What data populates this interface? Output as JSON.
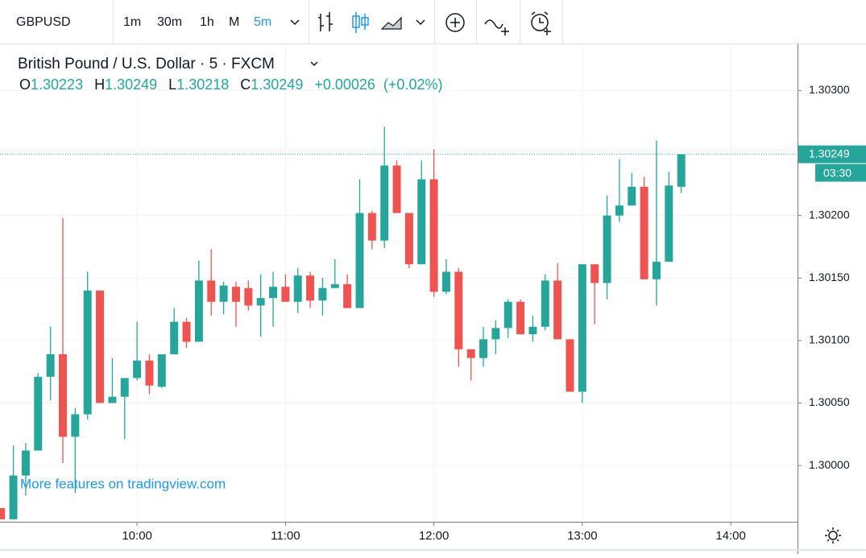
{
  "toolbar": {
    "symbol": "GBPUSD",
    "intervals": [
      "1m",
      "30m",
      "1h",
      "M",
      "5m"
    ],
    "active_interval": 4
  },
  "chart_data": {
    "type": "candlestick",
    "title": "British Pound / U.S. Dollar · 5 · FXCM",
    "ohlc_labels": [
      "O",
      "H",
      "L",
      "C"
    ],
    "change": "+0.00026",
    "change_pct": "(+0.02%)",
    "watermark": "More features on tradingview.com",
    "up_color": "#26a69a",
    "down_color": "#ef5350",
    "last_price": {
      "value": 1.30249,
      "label": "1.30249"
    },
    "countdown": "03:30",
    "x": [
      545,
      550,
      555,
      560,
      565,
      570,
      575,
      580,
      585,
      590,
      595,
      600,
      605,
      610,
      615,
      620,
      625,
      630,
      635,
      640,
      645,
      650,
      655,
      660,
      665,
      670,
      675,
      680,
      685,
      690,
      695,
      700,
      705,
      710,
      715,
      720,
      725,
      730,
      735,
      740,
      745,
      750,
      755,
      760,
      765,
      770,
      775,
      780,
      785,
      790,
      795,
      800,
      805,
      810,
      815,
      820
    ],
    "open": [
      1.29966,
      1.29957,
      1.29992,
      1.30012,
      1.30071,
      1.30089,
      1.30023,
      1.30041,
      1.3014,
      1.3005,
      1.30055,
      1.3007,
      1.30084,
      1.30063,
      1.30089,
      1.30115,
      1.30099,
      1.30148,
      1.30131,
      1.30143,
      1.30142,
      1.30128,
      1.30134,
      1.30143,
      1.30131,
      1.30152,
      1.30132,
      1.30142,
      1.30145,
      1.30126,
      1.30202,
      1.3018,
      1.3024,
      1.30202,
      1.30161,
      1.30229,
      1.30139,
      1.30155,
      1.30093,
      1.30086,
      1.30101,
      1.3011,
      1.30131,
      1.30105,
      1.30111,
      1.30148,
      1.30101,
      1.30059,
      1.30161,
      1.30146,
      1.302,
      1.30208,
      1.30223,
      1.30149,
      1.30163,
      1.30223
    ],
    "high": [
      1.29966,
      1.30016,
      1.30018,
      1.30074,
      1.30111,
      1.30198,
      1.30046,
      1.30155,
      1.3014,
      1.30086,
      1.3007,
      1.30115,
      1.30089,
      1.30089,
      1.30126,
      1.30118,
      1.30164,
      1.30173,
      1.30147,
      1.30147,
      1.30148,
      1.30153,
      1.30155,
      1.30153,
      1.30158,
      1.30155,
      1.3015,
      1.30165,
      1.30153,
      1.30229,
      1.30204,
      1.30271,
      1.30244,
      1.30202,
      1.30244,
      1.30253,
      1.30165,
      1.30158,
      1.30093,
      1.30111,
      1.30116,
      1.30133,
      1.30133,
      1.3012,
      1.30153,
      1.30162,
      1.30101,
      1.30161,
      1.30161,
      1.30216,
      1.30245,
      1.30234,
      1.30231,
      1.3026,
      1.30235,
      1.30249
    ],
    "low": [
      1.29957,
      1.29957,
      1.29976,
      1.30012,
      1.30052,
      1.30002,
      1.29978,
      1.30037,
      1.3005,
      1.3005,
      1.30021,
      1.30068,
      1.30057,
      1.30062,
      1.30089,
      1.30094,
      1.30099,
      1.3012,
      1.30121,
      1.30111,
      1.30124,
      1.30103,
      1.30111,
      1.30131,
      1.30122,
      1.30126,
      1.3012,
      1.30142,
      1.30126,
      1.30126,
      1.30173,
      1.30174,
      1.30202,
      1.30158,
      1.30161,
      1.30135,
      1.30137,
      1.30079,
      1.30068,
      1.30079,
      1.30089,
      1.30102,
      1.30105,
      1.30099,
      1.30108,
      1.30101,
      1.30059,
      1.3005,
      1.30113,
      1.30133,
      1.30195,
      1.30208,
      1.30149,
      1.30128,
      1.30163,
      1.30218
    ],
    "close": [
      1.29957,
      1.29992,
      1.30012,
      1.30071,
      1.30089,
      1.30023,
      1.30041,
      1.3014,
      1.3005,
      1.30055,
      1.3007,
      1.30084,
      1.30064,
      1.30089,
      1.30115,
      1.30099,
      1.30148,
      1.30131,
      1.30144,
      1.30131,
      1.30128,
      1.30134,
      1.30143,
      1.30131,
      1.30152,
      1.30132,
      1.30142,
      1.30145,
      1.30126,
      1.30202,
      1.3018,
      1.3024,
      1.30202,
      1.30161,
      1.30229,
      1.30139,
      1.30155,
      1.30093,
      1.30086,
      1.30101,
      1.3011,
      1.30131,
      1.30105,
      1.30111,
      1.30148,
      1.30101,
      1.30059,
      1.30161,
      1.30146,
      1.302,
      1.30208,
      1.30223,
      1.30149,
      1.30163,
      1.30224,
      1.30249
    ],
    "xlim": [
      544.6,
      867
    ],
    "xticks": [
      {
        "value": 600,
        "label": "10:00"
      },
      {
        "value": 660,
        "label": "11:00"
      },
      {
        "value": 720,
        "label": "12:00"
      },
      {
        "value": 780,
        "label": "13:00"
      },
      {
        "value": 840,
        "label": "14:00"
      }
    ],
    "ylim": [
      1.29955,
      1.30337
    ],
    "yticks": [
      {
        "value": 1.3,
        "label": "1.30000"
      },
      {
        "value": 1.3005,
        "label": "1.30050"
      },
      {
        "value": 1.301,
        "label": "1.30100"
      },
      {
        "value": 1.3015,
        "label": "1.30150"
      },
      {
        "value": 1.302,
        "label": "1.30200"
      },
      {
        "value": 1.303,
        "label": "1.30300"
      }
    ],
    "grid": true
  }
}
